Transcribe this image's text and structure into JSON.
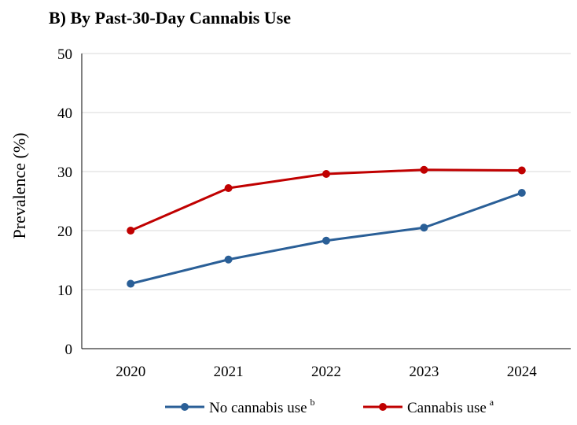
{
  "chart_data": {
    "type": "line",
    "title": "B) By Past-30-Day Cannabis Use",
    "xlabel": "",
    "ylabel": "Prevalence (%)",
    "categories": [
      "2020",
      "2021",
      "2022",
      "2023",
      "2024"
    ],
    "ylim": [
      0,
      50
    ],
    "yticks": [
      0,
      10,
      20,
      30,
      40,
      50
    ],
    "grid": true,
    "legend_position": "bottom",
    "series": [
      {
        "name": "No cannabis use",
        "superscript": "b",
        "color": "#2a5f97",
        "values": [
          11.0,
          15.1,
          18.3,
          20.5,
          26.4
        ]
      },
      {
        "name": "Cannabis use",
        "superscript": "a",
        "color": "#c00000",
        "values": [
          20.0,
          27.2,
          29.6,
          30.3,
          30.2
        ]
      }
    ]
  }
}
